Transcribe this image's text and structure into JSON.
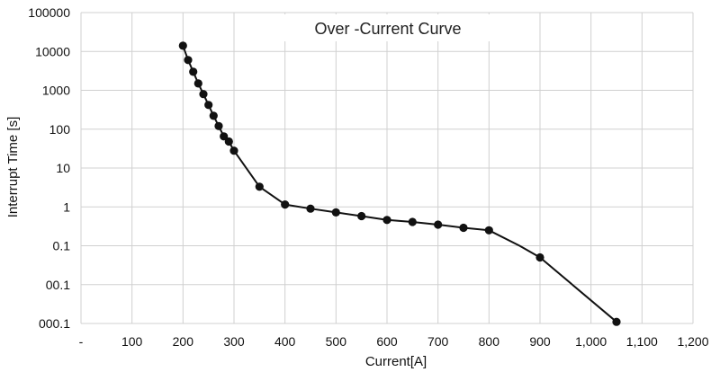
{
  "chart_data": {
    "type": "scatter",
    "title": "Over -Current Curve",
    "xlabel": "Current[A]",
    "ylabel": "Interrupt Time [s]",
    "xlim": [
      0,
      1200
    ],
    "ylim": [
      0.001,
      100000
    ],
    "y_scale": "log",
    "x_tick_labels": [
      "-",
      "100",
      "200",
      "300",
      "400",
      "500",
      "600",
      "700",
      "800",
      "900",
      "1,000",
      "1,100",
      "1,200"
    ],
    "y_tick_labels": [
      "100000",
      "10000",
      "1000",
      "100",
      "10",
      "1",
      "0.1",
      "00.1",
      "000.1"
    ],
    "grid": true,
    "line_color": "#111111",
    "marker_color": "#111111",
    "series": [
      {
        "x": [
          200,
          210,
          220,
          230,
          240,
          250,
          260,
          270,
          280,
          290,
          300,
          350,
          400,
          450,
          500,
          550,
          600,
          650,
          700,
          750,
          800,
          900,
          1050
        ],
        "y": [
          14000,
          6000,
          3000,
          1500,
          800,
          420,
          220,
          120,
          65,
          48,
          28,
          3.3,
          1.15,
          0.9,
          0.72,
          0.58,
          0.46,
          0.41,
          0.35,
          0.29,
          0.25,
          0.05,
          0.0011
        ]
      }
    ],
    "line_extra": [
      {
        "x": 860,
        "y": 0.1
      }
    ]
  }
}
